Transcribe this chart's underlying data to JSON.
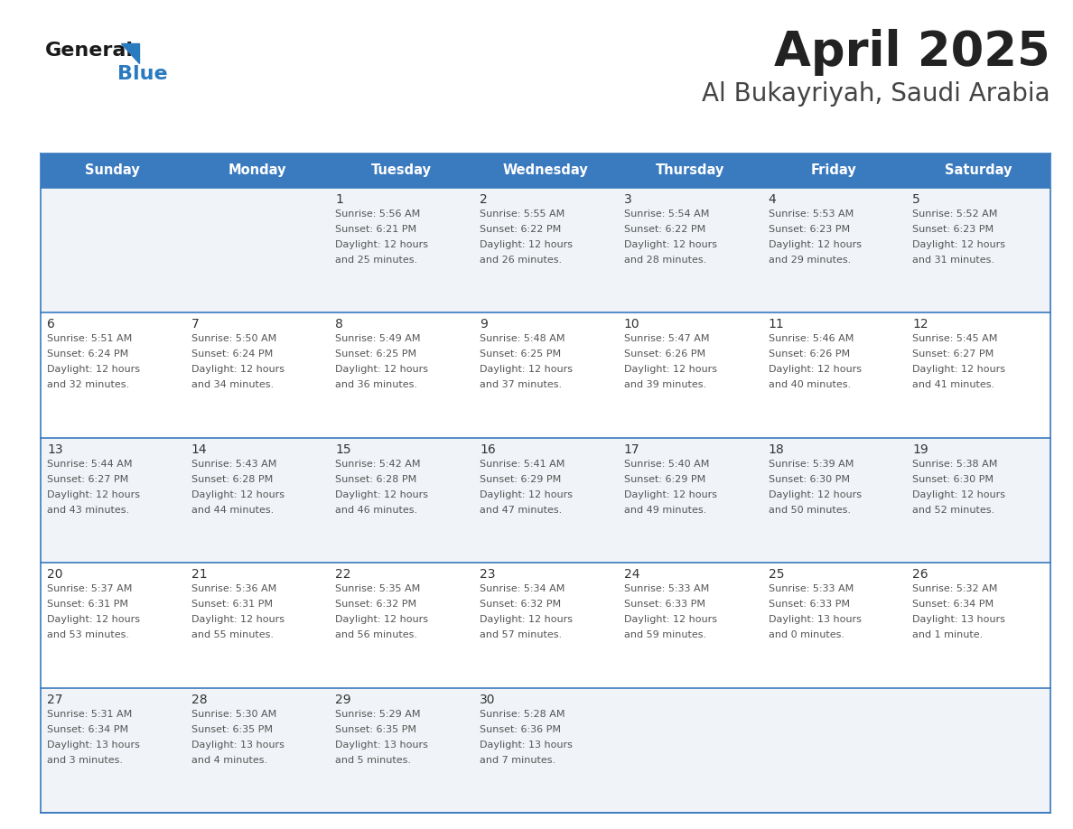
{
  "title": "April 2025",
  "subtitle": "Al Bukayriyah, Saudi Arabia",
  "header_bg": "#3a7abf",
  "header_text": "#ffffff",
  "day_names": [
    "Sunday",
    "Monday",
    "Tuesday",
    "Wednesday",
    "Thursday",
    "Friday",
    "Saturday"
  ],
  "row_bg_odd": "#f0f4f8",
  "row_bg_even": "#ffffff",
  "border_color": "#3a7abf",
  "text_color": "#555555",
  "num_color": "#333333",
  "logo_general_color": "#1a1a1a",
  "logo_blue_color": "#2a7abf",
  "days": [
    {
      "date": 1,
      "col": 2,
      "row": 0,
      "sunrise": "5:56 AM",
      "sunset": "6:21 PM",
      "daylight": "12 hours and 25 minutes."
    },
    {
      "date": 2,
      "col": 3,
      "row": 0,
      "sunrise": "5:55 AM",
      "sunset": "6:22 PM",
      "daylight": "12 hours and 26 minutes."
    },
    {
      "date": 3,
      "col": 4,
      "row": 0,
      "sunrise": "5:54 AM",
      "sunset": "6:22 PM",
      "daylight": "12 hours and 28 minutes."
    },
    {
      "date": 4,
      "col": 5,
      "row": 0,
      "sunrise": "5:53 AM",
      "sunset": "6:23 PM",
      "daylight": "12 hours and 29 minutes."
    },
    {
      "date": 5,
      "col": 6,
      "row": 0,
      "sunrise": "5:52 AM",
      "sunset": "6:23 PM",
      "daylight": "12 hours and 31 minutes."
    },
    {
      "date": 6,
      "col": 0,
      "row": 1,
      "sunrise": "5:51 AM",
      "sunset": "6:24 PM",
      "daylight": "12 hours and 32 minutes."
    },
    {
      "date": 7,
      "col": 1,
      "row": 1,
      "sunrise": "5:50 AM",
      "sunset": "6:24 PM",
      "daylight": "12 hours and 34 minutes."
    },
    {
      "date": 8,
      "col": 2,
      "row": 1,
      "sunrise": "5:49 AM",
      "sunset": "6:25 PM",
      "daylight": "12 hours and 36 minutes."
    },
    {
      "date": 9,
      "col": 3,
      "row": 1,
      "sunrise": "5:48 AM",
      "sunset": "6:25 PM",
      "daylight": "12 hours and 37 minutes."
    },
    {
      "date": 10,
      "col": 4,
      "row": 1,
      "sunrise": "5:47 AM",
      "sunset": "6:26 PM",
      "daylight": "12 hours and 39 minutes."
    },
    {
      "date": 11,
      "col": 5,
      "row": 1,
      "sunrise": "5:46 AM",
      "sunset": "6:26 PM",
      "daylight": "12 hours and 40 minutes."
    },
    {
      "date": 12,
      "col": 6,
      "row": 1,
      "sunrise": "5:45 AM",
      "sunset": "6:27 PM",
      "daylight": "12 hours and 41 minutes."
    },
    {
      "date": 13,
      "col": 0,
      "row": 2,
      "sunrise": "5:44 AM",
      "sunset": "6:27 PM",
      "daylight": "12 hours and 43 minutes."
    },
    {
      "date": 14,
      "col": 1,
      "row": 2,
      "sunrise": "5:43 AM",
      "sunset": "6:28 PM",
      "daylight": "12 hours and 44 minutes."
    },
    {
      "date": 15,
      "col": 2,
      "row": 2,
      "sunrise": "5:42 AM",
      "sunset": "6:28 PM",
      "daylight": "12 hours and 46 minutes."
    },
    {
      "date": 16,
      "col": 3,
      "row": 2,
      "sunrise": "5:41 AM",
      "sunset": "6:29 PM",
      "daylight": "12 hours and 47 minutes."
    },
    {
      "date": 17,
      "col": 4,
      "row": 2,
      "sunrise": "5:40 AM",
      "sunset": "6:29 PM",
      "daylight": "12 hours and 49 minutes."
    },
    {
      "date": 18,
      "col": 5,
      "row": 2,
      "sunrise": "5:39 AM",
      "sunset": "6:30 PM",
      "daylight": "12 hours and 50 minutes."
    },
    {
      "date": 19,
      "col": 6,
      "row": 2,
      "sunrise": "5:38 AM",
      "sunset": "6:30 PM",
      "daylight": "12 hours and 52 minutes."
    },
    {
      "date": 20,
      "col": 0,
      "row": 3,
      "sunrise": "5:37 AM",
      "sunset": "6:31 PM",
      "daylight": "12 hours and 53 minutes."
    },
    {
      "date": 21,
      "col": 1,
      "row": 3,
      "sunrise": "5:36 AM",
      "sunset": "6:31 PM",
      "daylight": "12 hours and 55 minutes."
    },
    {
      "date": 22,
      "col": 2,
      "row": 3,
      "sunrise": "5:35 AM",
      "sunset": "6:32 PM",
      "daylight": "12 hours and 56 minutes."
    },
    {
      "date": 23,
      "col": 3,
      "row": 3,
      "sunrise": "5:34 AM",
      "sunset": "6:32 PM",
      "daylight": "12 hours and 57 minutes."
    },
    {
      "date": 24,
      "col": 4,
      "row": 3,
      "sunrise": "5:33 AM",
      "sunset": "6:33 PM",
      "daylight": "12 hours and 59 minutes."
    },
    {
      "date": 25,
      "col": 5,
      "row": 3,
      "sunrise": "5:33 AM",
      "sunset": "6:33 PM",
      "daylight": "13 hours and 0 minutes."
    },
    {
      "date": 26,
      "col": 6,
      "row": 3,
      "sunrise": "5:32 AM",
      "sunset": "6:34 PM",
      "daylight": "13 hours and 1 minute."
    },
    {
      "date": 27,
      "col": 0,
      "row": 4,
      "sunrise": "5:31 AM",
      "sunset": "6:34 PM",
      "daylight": "13 hours and 3 minutes."
    },
    {
      "date": 28,
      "col": 1,
      "row": 4,
      "sunrise": "5:30 AM",
      "sunset": "6:35 PM",
      "daylight": "13 hours and 4 minutes."
    },
    {
      "date": 29,
      "col": 2,
      "row": 4,
      "sunrise": "5:29 AM",
      "sunset": "6:35 PM",
      "daylight": "13 hours and 5 minutes."
    },
    {
      "date": 30,
      "col": 3,
      "row": 4,
      "sunrise": "5:28 AM",
      "sunset": "6:36 PM",
      "daylight": "13 hours and 7 minutes."
    }
  ]
}
